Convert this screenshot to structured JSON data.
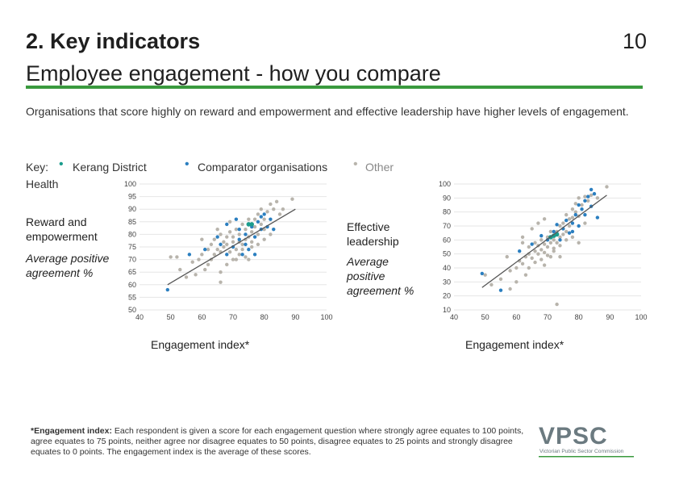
{
  "header": {
    "title_line1": "2. Key indicators",
    "title_line2": "Employee engagement - how you compare",
    "page_number": "10"
  },
  "intro": "Organisations that score highly on reward and empowerment and effective leadership have higher levels of engagement.",
  "key": {
    "label": "Key:",
    "items": [
      {
        "label": "Kerang District Health",
        "color": "#1a9c8c"
      },
      {
        "label": "Comparator organisations",
        "color": "#2b7fc0"
      },
      {
        "label": "Other",
        "color": "#b8b4ac"
      }
    ]
  },
  "colors": {
    "accent": "#3a9a3e",
    "kerang": "#1a9c8c",
    "comparator": "#2b7fc0",
    "other": "#b8b4ac",
    "trend": "#555555"
  },
  "chart_data": [
    {
      "type": "scatter",
      "ylabel": "Reward and empowerment",
      "ysublabel": "Average positive agreement %",
      "xlabel": "Engagement index*",
      "xlim": [
        40,
        100
      ],
      "ylim": [
        50,
        100
      ],
      "xticks": [
        40,
        50,
        60,
        70,
        80,
        90,
        100
      ],
      "yticks": [
        50,
        55,
        60,
        65,
        70,
        75,
        80,
        85,
        90,
        95,
        100
      ],
      "grid": true,
      "trendline": [
        [
          49,
          60
        ],
        [
          90,
          90
        ]
      ],
      "series": [
        {
          "name": "Kerang District Health",
          "points": [
            [
              75,
              84
            ],
            [
              76,
              84
            ]
          ]
        },
        {
          "name": "Comparator organisations",
          "points": [
            [
              49,
              58
            ],
            [
              56,
              72
            ],
            [
              61,
              74
            ],
            [
              65,
              79
            ],
            [
              68,
              84
            ],
            [
              70,
              75
            ],
            [
              71,
              86
            ],
            [
              72,
              78
            ],
            [
              73,
              72
            ],
            [
              74,
              80
            ],
            [
              75,
              74
            ],
            [
              76,
              83
            ],
            [
              77,
              79
            ],
            [
              78,
              85
            ],
            [
              79,
              87
            ],
            [
              80,
              88
            ],
            [
              81,
              83
            ],
            [
              82,
              86
            ],
            [
              83,
              82
            ],
            [
              72,
              82
            ],
            [
              68,
              72
            ],
            [
              66,
              76
            ],
            [
              74,
              76
            ],
            [
              79,
              82
            ],
            [
              77,
              72
            ]
          ]
        },
        {
          "name": "Other",
          "points": [
            [
              50,
              71
            ],
            [
              52,
              71
            ],
            [
              53,
              66
            ],
            [
              55,
              63
            ],
            [
              57,
              69
            ],
            [
              59,
              70
            ],
            [
              60,
              72
            ],
            [
              62,
              74
            ],
            [
              63,
              76
            ],
            [
              64,
              72
            ],
            [
              64,
              78
            ],
            [
              65,
              74
            ],
            [
              66,
              73
            ],
            [
              66,
              80
            ],
            [
              67,
              75
            ],
            [
              67,
              77
            ],
            [
              68,
              76
            ],
            [
              68,
              79
            ],
            [
              69,
              73
            ],
            [
              69,
              81
            ],
            [
              70,
              77
            ],
            [
              70,
              79
            ],
            [
              71,
              74
            ],
            [
              71,
              82
            ],
            [
              72,
              77
            ],
            [
              72,
              80
            ],
            [
              73,
              76
            ],
            [
              73,
              84
            ],
            [
              74,
              78
            ],
            [
              74,
              82
            ],
            [
              75,
              79
            ],
            [
              75,
              86
            ],
            [
              76,
              77
            ],
            [
              76,
              81
            ],
            [
              77,
              83
            ],
            [
              77,
              86
            ],
            [
              78,
              80
            ],
            [
              78,
              88
            ],
            [
              79,
              84
            ],
            [
              79,
              90
            ],
            [
              80,
              82
            ],
            [
              80,
              86
            ],
            [
              81,
              89
            ],
            [
              82,
              92
            ],
            [
              83,
              90
            ],
            [
              84,
              93
            ],
            [
              86,
              90
            ],
            [
              89,
              94
            ],
            [
              61,
              66
            ],
            [
              63,
              70
            ],
            [
              66,
              65
            ],
            [
              70,
              70
            ],
            [
              72,
              72
            ],
            [
              74,
              71
            ],
            [
              76,
              75
            ],
            [
              80,
              78
            ],
            [
              82,
              80
            ],
            [
              85,
              88
            ],
            [
              78,
              76
            ],
            [
              60,
              78
            ],
            [
              62,
              68
            ],
            [
              68,
              68
            ],
            [
              75,
              70
            ],
            [
              73,
              74
            ],
            [
              71,
              70
            ],
            [
              65,
              82
            ],
            [
              69,
              85
            ],
            [
              66,
              61
            ],
            [
              58,
              64
            ]
          ]
        }
      ]
    },
    {
      "type": "scatter",
      "ylabel": "Effective leadership",
      "ysublabel": "Average positive agreement %",
      "xlabel": "Engagement index*",
      "xlim": [
        40,
        100
      ],
      "ylim": [
        10,
        100
      ],
      "xticks": [
        40,
        50,
        60,
        70,
        80,
        90,
        100
      ],
      "yticks": [
        10,
        20,
        30,
        40,
        50,
        60,
        70,
        80,
        90,
        100
      ],
      "grid": true,
      "trendline": [
        [
          49,
          26
        ],
        [
          89,
          92
        ]
      ],
      "series": [
        {
          "name": "Kerang District Health",
          "points": [
            [
              71,
              62
            ],
            [
              72,
              63
            ],
            [
              73,
              64
            ]
          ]
        },
        {
          "name": "Comparator organisations",
          "points": [
            [
              49,
              36
            ],
            [
              55,
              24
            ],
            [
              61,
              52
            ],
            [
              65,
              57
            ],
            [
              68,
              63
            ],
            [
              70,
              60
            ],
            [
              72,
              66
            ],
            [
              73,
              71
            ],
            [
              74,
              60
            ],
            [
              75,
              68
            ],
            [
              76,
              74
            ],
            [
              77,
              65
            ],
            [
              78,
              72
            ],
            [
              79,
              78
            ],
            [
              80,
              85
            ],
            [
              81,
              82
            ],
            [
              82,
              88
            ],
            [
              83,
              91
            ],
            [
              84,
              84
            ],
            [
              85,
              93
            ],
            [
              86,
              76
            ],
            [
              82,
              78
            ],
            [
              84,
              96
            ],
            [
              80,
              70
            ],
            [
              78,
              66
            ]
          ]
        },
        {
          "name": "Other",
          "points": [
            [
              50,
              35
            ],
            [
              52,
              28
            ],
            [
              55,
              32
            ],
            [
              58,
              38
            ],
            [
              60,
              40
            ],
            [
              61,
              45
            ],
            [
              62,
              43
            ],
            [
              63,
              48
            ],
            [
              64,
              50
            ],
            [
              64,
              55
            ],
            [
              65,
              47
            ],
            [
              66,
              52
            ],
            [
              66,
              58
            ],
            [
              67,
              50
            ],
            [
              67,
              56
            ],
            [
              68,
              53
            ],
            [
              68,
              60
            ],
            [
              69,
              51
            ],
            [
              69,
              57
            ],
            [
              70,
              55
            ],
            [
              70,
              62
            ],
            [
              71,
              48
            ],
            [
              71,
              58
            ],
            [
              72,
              54
            ],
            [
              72,
              60
            ],
            [
              73,
              58
            ],
            [
              73,
              66
            ],
            [
              74,
              62
            ],
            [
              74,
              70
            ],
            [
              75,
              64
            ],
            [
              75,
              72
            ],
            [
              76,
              66
            ],
            [
              76,
              78
            ],
            [
              77,
              70
            ],
            [
              77,
              75
            ],
            [
              78,
              76
            ],
            [
              78,
              82
            ],
            [
              79,
              80
            ],
            [
              79,
              86
            ],
            [
              80,
              77
            ],
            [
              80,
              90
            ],
            [
              81,
              85
            ],
            [
              82,
              91
            ],
            [
              83,
              88
            ],
            [
              84,
              92
            ],
            [
              86,
              90
            ],
            [
              89,
              98
            ],
            [
              62,
              62
            ],
            [
              64,
              40
            ],
            [
              66,
              44
            ],
            [
              68,
              46
            ],
            [
              70,
              49
            ],
            [
              72,
              52
            ],
            [
              74,
              56
            ],
            [
              76,
              60
            ],
            [
              78,
              62
            ],
            [
              60,
              30
            ],
            [
              58,
              25
            ],
            [
              63,
              35
            ],
            [
              65,
              68
            ],
            [
              67,
              72
            ],
            [
              69,
              75
            ],
            [
              71,
              66
            ],
            [
              73,
              14
            ],
            [
              74,
              48
            ],
            [
              69,
              42
            ],
            [
              80,
              58
            ],
            [
              82,
              72
            ],
            [
              57,
              48
            ],
            [
              62,
              58
            ]
          ]
        }
      ]
    }
  ],
  "footnote": {
    "label": "*Engagement index:",
    "text": "Each respondent is given a score for each engagement question where strongly agree equates to 100 points, agree equates to 75 points, neither agree nor disagree equates to 50 points, disagree equates to 25 points and strongly disagree equates to 0 points. The engagement index is the average of these scores."
  },
  "logo": {
    "name": "VPSC",
    "subtitle": "Victorian Public Sector Commission",
    "color": "#6b7a80"
  }
}
